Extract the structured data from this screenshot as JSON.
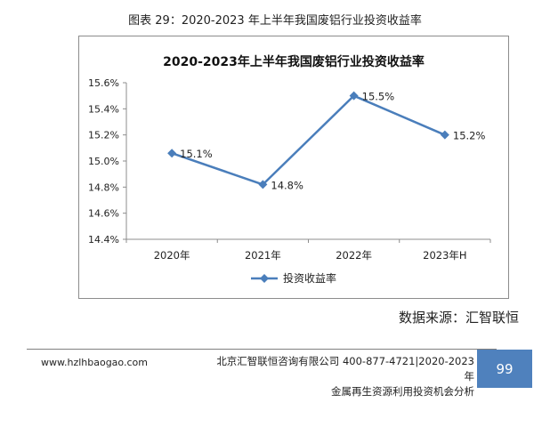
{
  "figure_caption": "图表 29：2020-2023 年上半年我国废铝行业投资收益率",
  "chart_data": {
    "type": "line",
    "title": "2020-2023年上半年我国废铝行业投资收益率",
    "categories": [
      "2020年",
      "2021年",
      "2022年",
      "2023年H"
    ],
    "series": [
      {
        "name": "投资收益率",
        "values": [
          15.06,
          14.82,
          15.5,
          15.2
        ],
        "data_labels": [
          "15.1%",
          "14.8%",
          "15.5%",
          "15.2%"
        ]
      }
    ],
    "ylim": [
      14.4,
      15.6
    ],
    "yticks": [
      "14.4%",
      "14.6%",
      "14.8%",
      "15.0%",
      "15.2%",
      "15.4%",
      "15.6%"
    ],
    "grid": false,
    "legend": "bottom",
    "color": "#4a7ebb"
  },
  "source": "数据来源：汇智联恒",
  "footer": {
    "site": "www.hzlhbaogao.com",
    "line1": "北京汇智联恒咨询有限公司  400-877-4721|2020-2023 年",
    "line2": "金属再生资源利用投资机会分析",
    "page": "99"
  }
}
